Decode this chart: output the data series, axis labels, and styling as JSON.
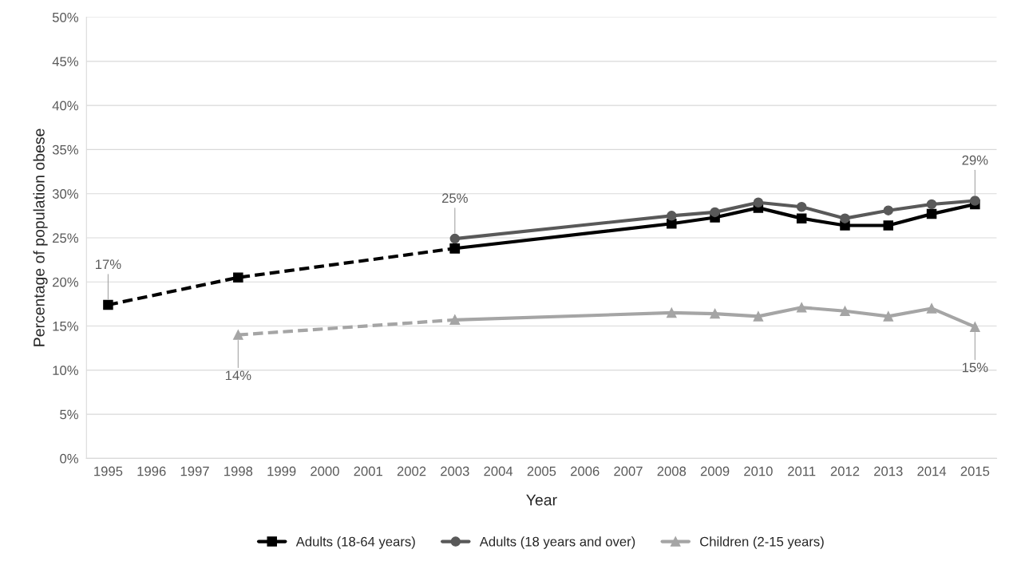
{
  "chart_data": {
    "type": "line",
    "xlabel": "Year",
    "ylabel": "Percentage of population obese",
    "categories": [
      "1995",
      "1996",
      "1997",
      "1998",
      "1999",
      "2000",
      "2001",
      "2002",
      "2003",
      "2004",
      "2005",
      "2006",
      "2007",
      "2008",
      "2009",
      "2010",
      "2011",
      "2012",
      "2013",
      "2014",
      "2015"
    ],
    "series": [
      {
        "color": "#000000",
        "marker": "square",
        "line_style": "dashed",
        "values": [
          17.4,
          null,
          null,
          20.5,
          null,
          null,
          null,
          null,
          23.8,
          null,
          null,
          null,
          null,
          null,
          null,
          null,
          null,
          null,
          null,
          null,
          null
        ]
      },
      {
        "color": "#a5a5a5",
        "marker": "triangle",
        "line_style": "dashed",
        "values": [
          null,
          null,
          null,
          14.0,
          null,
          null,
          null,
          null,
          15.7,
          null,
          null,
          null,
          null,
          null,
          null,
          null,
          null,
          null,
          null,
          null,
          null
        ]
      },
      {
        "name": "Adults (18-64 years)",
        "color": "#000000",
        "marker": "square",
        "line_style": "solid",
        "values": [
          null,
          null,
          null,
          null,
          null,
          null,
          null,
          null,
          23.8,
          null,
          null,
          null,
          null,
          26.6,
          27.3,
          28.4,
          27.2,
          26.4,
          26.4,
          27.7,
          28.8
        ]
      },
      {
        "name": "Adults (18 years and over)",
        "color": "#595959",
        "marker": "circle",
        "line_style": "solid",
        "values": [
          null,
          null,
          null,
          null,
          null,
          null,
          null,
          null,
          24.9,
          null,
          null,
          null,
          null,
          27.5,
          27.9,
          29.0,
          28.5,
          27.2,
          28.1,
          28.8,
          29.2
        ]
      },
      {
        "name": "Children (2-15 years)",
        "color": "#a5a5a5",
        "marker": "triangle",
        "line_style": "solid",
        "values": [
          null,
          null,
          null,
          null,
          null,
          null,
          null,
          null,
          15.7,
          null,
          null,
          null,
          null,
          16.5,
          16.4,
          16.1,
          17.1,
          16.7,
          16.1,
          17.0,
          14.9
        ]
      }
    ],
    "ylim": [
      0,
      50
    ],
    "yticks": [
      {
        "value": 0,
        "label": "0%"
      },
      {
        "value": 5,
        "label": "5%"
      },
      {
        "value": 10,
        "label": "10%"
      },
      {
        "value": 15,
        "label": "15%"
      },
      {
        "value": 20,
        "label": "20%"
      },
      {
        "value": 25,
        "label": "25%"
      },
      {
        "value": 30,
        "label": "30%"
      },
      {
        "value": 35,
        "label": "35%"
      },
      {
        "value": 40,
        "label": "40%"
      },
      {
        "value": 45,
        "label": "45%"
      },
      {
        "value": 50,
        "label": "50%"
      }
    ],
    "annotations": [
      {
        "text": "17%",
        "x": "1995",
        "y": 17.4
      },
      {
        "text": "14%",
        "x": "1998",
        "y": 14.0
      },
      {
        "text": "25%",
        "x": "2003",
        "y": 24.9
      },
      {
        "text": "29%",
        "x": "2015",
        "y": 29.2
      },
      {
        "text": "15%",
        "x": "2015",
        "y": 14.9
      }
    ],
    "grid": "y",
    "legend": "bottom"
  }
}
